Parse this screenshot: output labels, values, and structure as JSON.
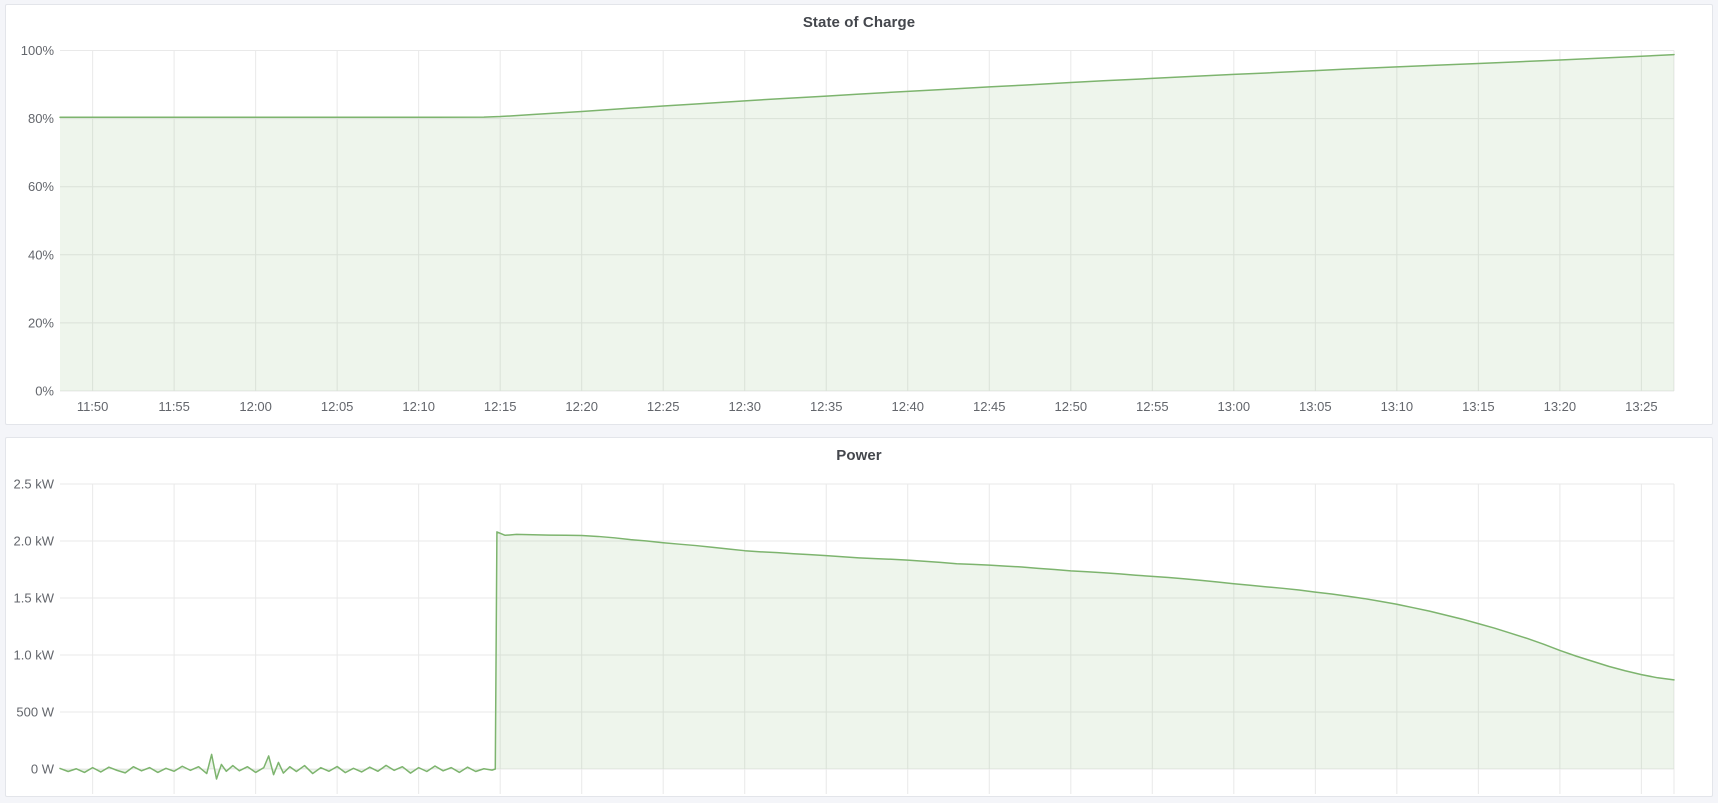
{
  "page": {
    "background_color": "#f4f5f9",
    "panel_background": "#ffffff",
    "panel_border_color": "#e3e5ea"
  },
  "colors": {
    "series_green": "#7db46e",
    "grid_line": "#e9e9e9",
    "tick_text": "#63666c",
    "title_text": "#44474d"
  },
  "panels": [
    {
      "title": "State of Charge"
    },
    {
      "title": "Power"
    }
  ],
  "chart_data": [
    {
      "type": "area",
      "title": "State of Charge",
      "xlabel": "",
      "ylabel": "",
      "unit": "percent",
      "grid": true,
      "legend": "none",
      "x_axis": {
        "kind": "time",
        "visible_range": [
          "11:48",
          "13:27"
        ],
        "tick_labels": [
          "11:50",
          "11:55",
          "12:00",
          "12:05",
          "12:10",
          "12:15",
          "12:20",
          "12:25",
          "12:30",
          "12:35",
          "12:40",
          "12:45",
          "12:50",
          "12:55",
          "13:00",
          "13:05",
          "13:10",
          "13:15",
          "13:20",
          "13:25"
        ],
        "tick_minutes": [
          710,
          715,
          720,
          725,
          730,
          735,
          740,
          745,
          750,
          755,
          760,
          765,
          770,
          775,
          780,
          785,
          790,
          795,
          800,
          805
        ],
        "range_minutes": [
          708,
          807
        ],
        "show_labels": true
      },
      "y_axis": {
        "tick_labels": [
          "0%",
          "20%",
          "40%",
          "60%",
          "80%",
          "100%"
        ],
        "tick_values": [
          0,
          20,
          40,
          60,
          80,
          100
        ],
        "range": [
          0,
          100
        ]
      },
      "series": [
        {
          "name": "State of Charge",
          "color": "#7db46e",
          "fill_opacity": 0.13,
          "points_t_pct": [
            [
              708,
              80.4
            ],
            [
              710,
              80.4
            ],
            [
              713,
              80.4
            ],
            [
              716,
              80.4
            ],
            [
              719,
              80.4
            ],
            [
              722,
              80.4
            ],
            [
              725,
              80.4
            ],
            [
              728,
              80.4
            ],
            [
              731,
              80.4
            ],
            [
              734,
              80.45
            ],
            [
              735,
              80.6
            ],
            [
              737,
              81.2
            ],
            [
              740,
              82.1
            ],
            [
              742,
              82.75
            ],
            [
              745,
              83.7
            ],
            [
              747,
              84.3
            ],
            [
              750,
              85.2
            ],
            [
              752,
              85.8
            ],
            [
              755,
              86.6
            ],
            [
              757,
              87.2
            ],
            [
              760,
              88.0
            ],
            [
              762,
              88.5
            ],
            [
              765,
              89.3
            ],
            [
              767,
              89.8
            ],
            [
              770,
              90.6
            ],
            [
              772,
              91.1
            ],
            [
              775,
              91.8
            ],
            [
              777,
              92.3
            ],
            [
              780,
              93.0
            ],
            [
              782,
              93.4
            ],
            [
              785,
              94.1
            ],
            [
              787,
              94.55
            ],
            [
              790,
              95.2
            ],
            [
              792,
              95.6
            ],
            [
              795,
              96.2
            ],
            [
              797,
              96.6
            ],
            [
              800,
              97.2
            ],
            [
              802,
              97.65
            ],
            [
              805,
              98.3
            ],
            [
              807,
              98.8
            ]
          ]
        }
      ]
    },
    {
      "type": "area",
      "title": "Power",
      "xlabel": "",
      "ylabel": "",
      "unit": "kW",
      "grid": true,
      "legend": "none",
      "x_axis": {
        "kind": "time",
        "visible_range": [
          "11:48",
          "13:27"
        ],
        "tick_minutes": [
          710,
          715,
          720,
          725,
          730,
          735,
          740,
          745,
          750,
          755,
          760,
          765,
          770,
          775,
          780,
          785,
          790,
          795,
          800,
          805
        ],
        "range_minutes": [
          708,
          807
        ],
        "show_labels": false
      },
      "y_axis": {
        "tick_labels": [
          "0 W",
          "500 W",
          "1.0 kW",
          "1.5 kW",
          "2.0 kW",
          "2.5 kW"
        ],
        "tick_values": [
          0,
          0.5,
          1.0,
          1.5,
          2.0,
          2.5
        ],
        "range": [
          -0.22,
          2.5
        ]
      },
      "series": [
        {
          "name": "Power",
          "color": "#7db46e",
          "fill_opacity": 0.13,
          "points_t_kw": [
            [
              708.0,
              0.005
            ],
            [
              708.5,
              -0.022
            ],
            [
              709.0,
              0.002
            ],
            [
              709.5,
              -0.03
            ],
            [
              710.0,
              0.012
            ],
            [
              710.5,
              -0.026
            ],
            [
              711.0,
              0.016
            ],
            [
              711.5,
              -0.012
            ],
            [
              712.0,
              -0.034
            ],
            [
              712.5,
              0.02
            ],
            [
              713.0,
              -0.016
            ],
            [
              713.5,
              0.012
            ],
            [
              714.0,
              -0.03
            ],
            [
              714.5,
              0.006
            ],
            [
              715.0,
              -0.02
            ],
            [
              715.5,
              0.024
            ],
            [
              716.0,
              -0.012
            ],
            [
              716.5,
              0.02
            ],
            [
              717.0,
              -0.04
            ],
            [
              717.3,
              0.128
            ],
            [
              717.6,
              -0.088
            ],
            [
              717.9,
              0.04
            ],
            [
              718.2,
              -0.02
            ],
            [
              718.6,
              0.03
            ],
            [
              719.0,
              -0.016
            ],
            [
              719.5,
              0.02
            ],
            [
              720.0,
              -0.03
            ],
            [
              720.5,
              0.012
            ],
            [
              720.8,
              0.115
            ],
            [
              721.1,
              -0.05
            ],
            [
              721.4,
              0.058
            ],
            [
              721.7,
              -0.036
            ],
            [
              722.1,
              0.02
            ],
            [
              722.5,
              -0.022
            ],
            [
              723.0,
              0.03
            ],
            [
              723.5,
              -0.04
            ],
            [
              724.0,
              0.012
            ],
            [
              724.5,
              -0.02
            ],
            [
              725.0,
              0.022
            ],
            [
              725.5,
              -0.032
            ],
            [
              726.0,
              0.006
            ],
            [
              726.5,
              -0.026
            ],
            [
              727.0,
              0.016
            ],
            [
              727.5,
              -0.02
            ],
            [
              728.0,
              0.032
            ],
            [
              728.5,
              -0.012
            ],
            [
              729.0,
              0.02
            ],
            [
              729.5,
              -0.036
            ],
            [
              730.0,
              0.012
            ],
            [
              730.5,
              -0.022
            ],
            [
              731.0,
              0.026
            ],
            [
              731.5,
              -0.016
            ],
            [
              732.0,
              0.012
            ],
            [
              732.5,
              -0.03
            ],
            [
              733.0,
              0.016
            ],
            [
              733.5,
              -0.022
            ],
            [
              734.0,
              0.002
            ],
            [
              734.5,
              -0.01
            ],
            [
              734.7,
              0.0
            ],
            [
              734.8,
              2.08
            ],
            [
              735.3,
              2.05
            ],
            [
              736,
              2.058
            ],
            [
              737,
              2.055
            ],
            [
              738,
              2.052
            ],
            [
              739,
              2.05
            ],
            [
              740,
              2.048
            ],
            [
              741,
              2.04
            ],
            [
              742,
              2.028
            ],
            [
              743,
              2.012
            ],
            [
              744,
              2.0
            ],
            [
              745,
              1.985
            ],
            [
              746,
              1.972
            ],
            [
              747,
              1.96
            ],
            [
              748,
              1.945
            ],
            [
              749,
              1.93
            ],
            [
              750,
              1.915
            ],
            [
              751,
              1.905
            ],
            [
              752,
              1.898
            ],
            [
              753,
              1.888
            ],
            [
              754,
              1.88
            ],
            [
              755,
              1.872
            ],
            [
              756,
              1.862
            ],
            [
              757,
              1.852
            ],
            [
              758,
              1.845
            ],
            [
              759,
              1.84
            ],
            [
              760,
              1.832
            ],
            [
              761,
              1.822
            ],
            [
              762,
              1.812
            ],
            [
              763,
              1.8
            ],
            [
              764,
              1.795
            ],
            [
              765,
              1.788
            ],
            [
              766,
              1.78
            ],
            [
              767,
              1.772
            ],
            [
              768,
              1.76
            ],
            [
              769,
              1.75
            ],
            [
              770,
              1.738
            ],
            [
              771,
              1.73
            ],
            [
              772,
              1.722
            ],
            [
              773,
              1.712
            ],
            [
              774,
              1.7
            ],
            [
              775,
              1.69
            ],
            [
              776,
              1.68
            ],
            [
              777,
              1.668
            ],
            [
              778,
              1.655
            ],
            [
              779,
              1.64
            ],
            [
              780,
              1.625
            ],
            [
              781,
              1.612
            ],
            [
              782,
              1.598
            ],
            [
              783,
              1.585
            ],
            [
              784,
              1.57
            ],
            [
              785,
              1.552
            ],
            [
              786,
              1.535
            ],
            [
              787,
              1.515
            ],
            [
              788,
              1.495
            ],
            [
              789,
              1.47
            ],
            [
              790,
              1.445
            ],
            [
              791,
              1.415
            ],
            [
              792,
              1.385
            ],
            [
              793,
              1.35
            ],
            [
              794,
              1.315
            ],
            [
              795,
              1.275
            ],
            [
              796,
              1.235
            ],
            [
              797,
              1.19
            ],
            [
              798,
              1.145
            ],
            [
              799,
              1.095
            ],
            [
              800,
              1.04
            ],
            [
              801,
              0.99
            ],
            [
              802,
              0.945
            ],
            [
              803,
              0.9
            ],
            [
              804,
              0.862
            ],
            [
              805,
              0.828
            ],
            [
              806,
              0.8
            ],
            [
              807,
              0.782
            ]
          ]
        }
      ]
    }
  ]
}
